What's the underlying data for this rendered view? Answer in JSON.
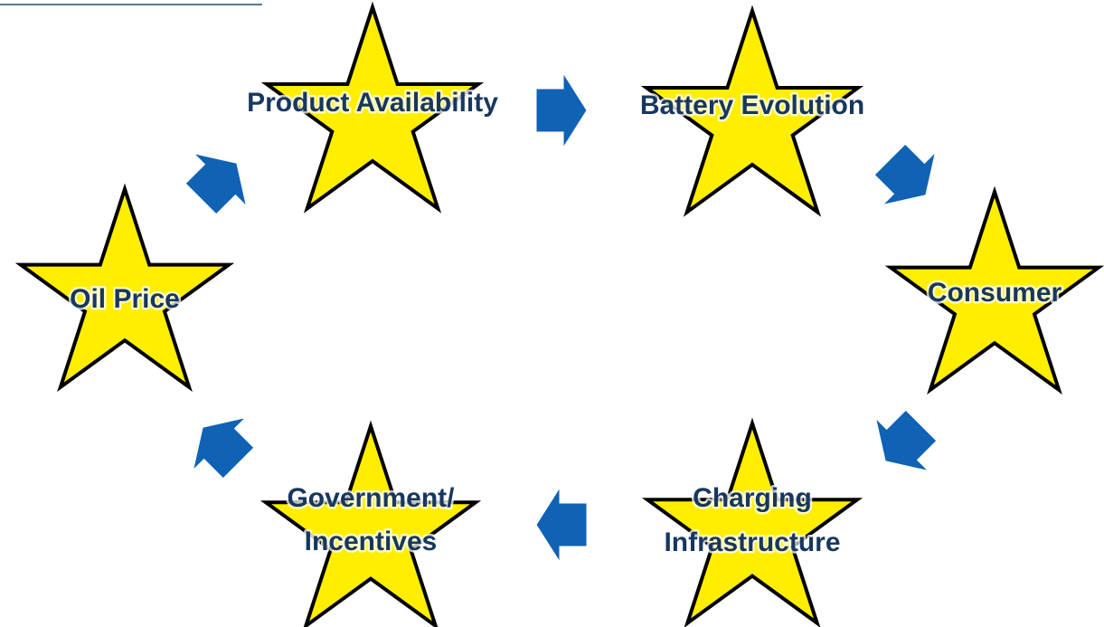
{
  "nodes": [
    {
      "lines": [
        "Product Availability"
      ]
    },
    {
      "lines": [
        "Battery Evolution"
      ]
    },
    {
      "lines": [
        "Consumer"
      ]
    },
    {
      "lines": [
        "Charging",
        "Infrastructure"
      ]
    },
    {
      "lines": [
        "Government/",
        "Incentives"
      ]
    },
    {
      "lines": [
        "Oil Price"
      ]
    }
  ]
}
